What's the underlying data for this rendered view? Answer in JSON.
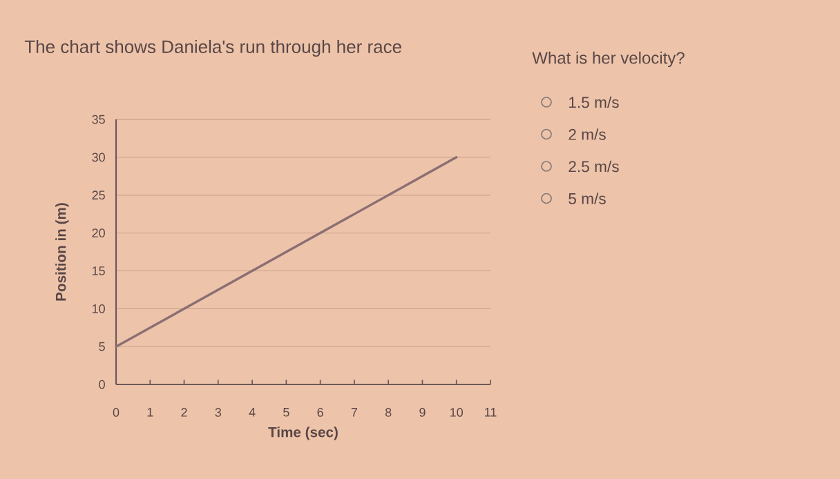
{
  "chart_data": {
    "type": "line",
    "title": "The chart shows Daniela's run through her race",
    "xlabel": "Time (sec)",
    "ylabel": "Position in (m)",
    "x": [
      0,
      10
    ],
    "series": [
      {
        "color": "#8c6f73",
        "values": [
          5,
          30
        ]
      }
    ],
    "xlim": [
      0,
      11
    ],
    "ylim": [
      0,
      35
    ],
    "xticks": [
      0,
      1,
      2,
      3,
      4,
      5,
      6,
      7,
      8,
      9,
      10,
      11
    ],
    "yticks": [
      0,
      5,
      10,
      15,
      20,
      25,
      30,
      35
    ],
    "grid": "y",
    "legend": false,
    "marker": "none",
    "line_style": "solid",
    "annotations": [
      "What is her velocity?",
      "1.5 m/s",
      "2 m/s",
      "2.5 m/s",
      "5 m/s"
    ]
  }
}
